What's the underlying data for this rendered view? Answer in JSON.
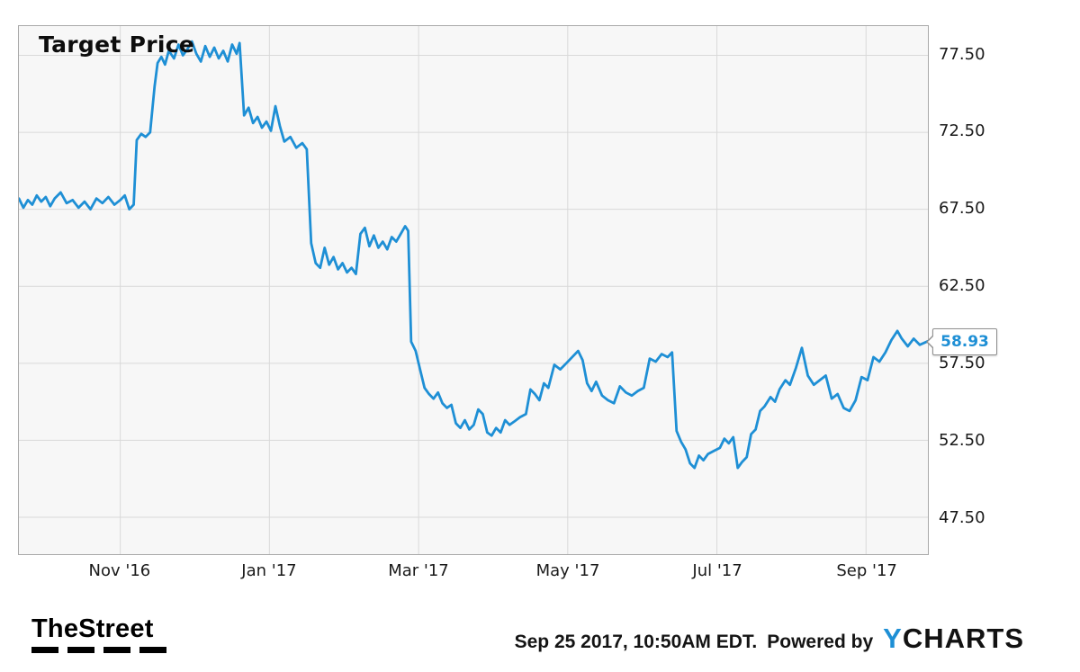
{
  "chart_data": {
    "type": "line",
    "title": "Target Price",
    "series_name": "Target Price",
    "line_color": "#1e8fd5",
    "grid": true,
    "legend": false,
    "x_unit": "months (0 = Oct '16 tick position, 1 = Nov '16, 11 = Sep '17)",
    "xlim": [
      -0.36,
      11.83
    ],
    "ylim": [
      45.1,
      79.4
    ],
    "x_ticks": [
      {
        "pos": 1,
        "label": "Nov '16"
      },
      {
        "pos": 3,
        "label": "Jan '17"
      },
      {
        "pos": 5,
        "label": "Mar '17"
      },
      {
        "pos": 7,
        "label": "May '17"
      },
      {
        "pos": 9,
        "label": "Jul '17"
      },
      {
        "pos": 11,
        "label": "Sep '17"
      }
    ],
    "y_ticks": [
      {
        "value": 77.5,
        "label": "77.50"
      },
      {
        "value": 72.5,
        "label": "72.50"
      },
      {
        "value": 67.5,
        "label": "67.50"
      },
      {
        "value": 62.5,
        "label": "62.50"
      },
      {
        "value": 57.5,
        "label": "57.50"
      },
      {
        "value": 52.5,
        "label": "52.50"
      },
      {
        "value": 47.5,
        "label": "47.50"
      }
    ],
    "last_value": 58.93,
    "last_value_label": "58.93",
    "series": [
      {
        "name": "Target Price",
        "points": [
          [
            -0.36,
            68.2
          ],
          [
            -0.3,
            67.6
          ],
          [
            -0.24,
            68.1
          ],
          [
            -0.18,
            67.8
          ],
          [
            -0.12,
            68.4
          ],
          [
            -0.06,
            68.0
          ],
          [
            0.0,
            68.3
          ],
          [
            0.06,
            67.7
          ],
          [
            0.12,
            68.2
          ],
          [
            0.2,
            68.6
          ],
          [
            0.28,
            67.9
          ],
          [
            0.36,
            68.1
          ],
          [
            0.44,
            67.6
          ],
          [
            0.52,
            68.0
          ],
          [
            0.6,
            67.5
          ],
          [
            0.68,
            68.2
          ],
          [
            0.76,
            67.9
          ],
          [
            0.84,
            68.3
          ],
          [
            0.92,
            67.8
          ],
          [
            1.0,
            68.1
          ],
          [
            1.06,
            68.4
          ],
          [
            1.12,
            67.5
          ],
          [
            1.18,
            67.8
          ],
          [
            1.22,
            72.0
          ],
          [
            1.28,
            72.4
          ],
          [
            1.34,
            72.2
          ],
          [
            1.4,
            72.5
          ],
          [
            1.46,
            75.5
          ],
          [
            1.5,
            77.0
          ],
          [
            1.55,
            77.4
          ],
          [
            1.6,
            76.9
          ],
          [
            1.65,
            77.8
          ],
          [
            1.72,
            77.3
          ],
          [
            1.78,
            78.2
          ],
          [
            1.84,
            77.5
          ],
          [
            1.9,
            77.9
          ],
          [
            1.96,
            78.4
          ],
          [
            2.02,
            77.6
          ],
          [
            2.08,
            77.1
          ],
          [
            2.14,
            78.1
          ],
          [
            2.2,
            77.4
          ],
          [
            2.26,
            78.0
          ],
          [
            2.32,
            77.3
          ],
          [
            2.38,
            77.8
          ],
          [
            2.44,
            77.1
          ],
          [
            2.5,
            78.2
          ],
          [
            2.56,
            77.6
          ],
          [
            2.6,
            78.3
          ],
          [
            2.66,
            73.6
          ],
          [
            2.72,
            74.1
          ],
          [
            2.78,
            73.1
          ],
          [
            2.84,
            73.5
          ],
          [
            2.9,
            72.8
          ],
          [
            2.96,
            73.2
          ],
          [
            3.02,
            72.6
          ],
          [
            3.08,
            74.2
          ],
          [
            3.14,
            72.9
          ],
          [
            3.2,
            71.9
          ],
          [
            3.28,
            72.2
          ],
          [
            3.36,
            71.5
          ],
          [
            3.44,
            71.8
          ],
          [
            3.5,
            71.4
          ],
          [
            3.56,
            65.3
          ],
          [
            3.62,
            64.0
          ],
          [
            3.68,
            63.7
          ],
          [
            3.74,
            65.0
          ],
          [
            3.8,
            63.9
          ],
          [
            3.86,
            64.4
          ],
          [
            3.92,
            63.6
          ],
          [
            3.98,
            64.0
          ],
          [
            4.04,
            63.4
          ],
          [
            4.1,
            63.7
          ],
          [
            4.16,
            63.3
          ],
          [
            4.22,
            65.9
          ],
          [
            4.28,
            66.3
          ],
          [
            4.34,
            65.1
          ],
          [
            4.4,
            65.8
          ],
          [
            4.46,
            65.0
          ],
          [
            4.52,
            65.4
          ],
          [
            4.58,
            64.9
          ],
          [
            4.64,
            65.7
          ],
          [
            4.7,
            65.4
          ],
          [
            4.76,
            65.9
          ],
          [
            4.82,
            66.4
          ],
          [
            4.86,
            66.1
          ],
          [
            4.9,
            58.9
          ],
          [
            4.96,
            58.3
          ],
          [
            5.02,
            57.1
          ],
          [
            5.08,
            55.9
          ],
          [
            5.14,
            55.5
          ],
          [
            5.2,
            55.2
          ],
          [
            5.26,
            55.6
          ],
          [
            5.32,
            54.9
          ],
          [
            5.38,
            54.6
          ],
          [
            5.44,
            54.8
          ],
          [
            5.5,
            53.6
          ],
          [
            5.56,
            53.3
          ],
          [
            5.62,
            53.8
          ],
          [
            5.68,
            53.2
          ],
          [
            5.74,
            53.5
          ],
          [
            5.8,
            54.5
          ],
          [
            5.86,
            54.2
          ],
          [
            5.92,
            53.0
          ],
          [
            5.98,
            52.8
          ],
          [
            6.04,
            53.3
          ],
          [
            6.1,
            53.0
          ],
          [
            6.16,
            53.8
          ],
          [
            6.22,
            53.5
          ],
          [
            6.28,
            53.7
          ],
          [
            6.36,
            54.0
          ],
          [
            6.44,
            54.2
          ],
          [
            6.5,
            55.8
          ],
          [
            6.56,
            55.5
          ],
          [
            6.62,
            55.1
          ],
          [
            6.68,
            56.2
          ],
          [
            6.74,
            55.9
          ],
          [
            6.82,
            57.4
          ],
          [
            6.9,
            57.1
          ],
          [
            6.98,
            57.5
          ],
          [
            7.06,
            57.9
          ],
          [
            7.14,
            58.3
          ],
          [
            7.2,
            57.7
          ],
          [
            7.26,
            56.2
          ],
          [
            7.32,
            55.7
          ],
          [
            7.38,
            56.3
          ],
          [
            7.46,
            55.4
          ],
          [
            7.54,
            55.1
          ],
          [
            7.62,
            54.9
          ],
          [
            7.7,
            56.0
          ],
          [
            7.78,
            55.6
          ],
          [
            7.86,
            55.4
          ],
          [
            7.94,
            55.7
          ],
          [
            8.02,
            55.9
          ],
          [
            8.1,
            57.8
          ],
          [
            8.18,
            57.6
          ],
          [
            8.26,
            58.1
          ],
          [
            8.34,
            57.9
          ],
          [
            8.4,
            58.2
          ],
          [
            8.46,
            53.1
          ],
          [
            8.52,
            52.4
          ],
          [
            8.58,
            51.9
          ],
          [
            8.64,
            51.0
          ],
          [
            8.7,
            50.7
          ],
          [
            8.76,
            51.5
          ],
          [
            8.82,
            51.2
          ],
          [
            8.88,
            51.6
          ],
          [
            8.96,
            51.8
          ],
          [
            9.04,
            52.0
          ],
          [
            9.1,
            52.6
          ],
          [
            9.16,
            52.3
          ],
          [
            9.22,
            52.7
          ],
          [
            9.28,
            50.7
          ],
          [
            9.34,
            51.1
          ],
          [
            9.4,
            51.4
          ],
          [
            9.46,
            52.9
          ],
          [
            9.52,
            53.2
          ],
          [
            9.58,
            54.4
          ],
          [
            9.64,
            54.7
          ],
          [
            9.72,
            55.3
          ],
          [
            9.78,
            55.0
          ],
          [
            9.84,
            55.8
          ],
          [
            9.92,
            56.4
          ],
          [
            9.98,
            56.1
          ],
          [
            10.06,
            57.2
          ],
          [
            10.14,
            58.5
          ],
          [
            10.22,
            56.7
          ],
          [
            10.3,
            56.1
          ],
          [
            10.38,
            56.4
          ],
          [
            10.46,
            56.7
          ],
          [
            10.54,
            55.2
          ],
          [
            10.62,
            55.5
          ],
          [
            10.7,
            54.6
          ],
          [
            10.78,
            54.4
          ],
          [
            10.86,
            55.1
          ],
          [
            10.94,
            56.6
          ],
          [
            11.02,
            56.4
          ],
          [
            11.1,
            57.9
          ],
          [
            11.18,
            57.6
          ],
          [
            11.26,
            58.2
          ],
          [
            11.34,
            59.0
          ],
          [
            11.42,
            59.6
          ],
          [
            11.48,
            59.1
          ],
          [
            11.56,
            58.6
          ],
          [
            11.64,
            59.1
          ],
          [
            11.72,
            58.7
          ],
          [
            11.83,
            58.93
          ]
        ]
      }
    ]
  },
  "footer": {
    "brand": "TheStreet",
    "timestamp": "Sep 25 2017, 10:50AM EDT.",
    "powered_by": "Powered by",
    "ycharts_y": "Y",
    "ycharts_rest": "CHARTS"
  }
}
